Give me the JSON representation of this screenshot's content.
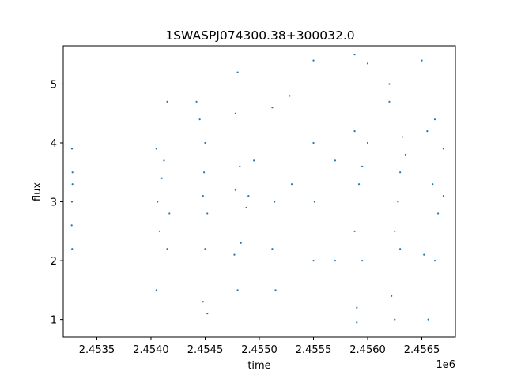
{
  "chart_data": {
    "type": "scatter",
    "title": "1SWASPJ074300.38+300032.0",
    "xlabel": "time",
    "ylabel": "flux",
    "x_offset_label": "1e6",
    "xlim": [
      2453190,
      2456810
    ],
    "ylim": [
      0.7,
      5.65
    ],
    "xticks": [
      2453500,
      2454000,
      2454500,
      2455000,
      2455500,
      2456000,
      2456500
    ],
    "xtick_labels": [
      "2.4535",
      "2.4540",
      "2.4545",
      "2.4550",
      "2.4555",
      "2.4560",
      "2.4565"
    ],
    "yticks": [
      1,
      2,
      3,
      4,
      5
    ],
    "ytick_labels": [
      "1",
      "2",
      "3",
      "4",
      "5"
    ],
    "grid": false,
    "marker_color": "#1f77b4",
    "series": [
      {
        "name": "",
        "x": [
          2453270,
          2453270,
          2453275,
          2453272,
          2453268,
          2453275,
          2454050,
          2454150,
          2454080,
          2454120,
          2454050,
          2454150,
          2454060,
          2454100,
          2454170,
          2454450,
          2454480,
          2454520,
          2454500,
          2454490,
          2454420,
          2454520,
          2454480,
          2454500,
          2454780,
          2454800,
          2454830,
          2454950,
          2454880,
          2454820,
          2454800,
          2454900,
          2454770,
          2454780,
          2455120,
          2455150,
          2455140,
          2455120,
          2455300,
          2455280,
          2455500,
          2455500,
          2455510,
          2455500,
          2455700,
          2455700,
          2455880,
          2455900,
          2455950,
          2456000,
          2455880,
          2455920,
          2456000,
          2455900,
          2455950,
          2455880,
          2456200,
          2456250,
          2456300,
          2456350,
          2456220,
          2456320,
          2456280,
          2456250,
          2456300,
          2456200,
          2456500,
          2456560,
          2456620,
          2456700,
          2456550,
          2456650,
          2456600,
          2456700,
          2456520,
          2456620
        ],
        "y": [
          3.0,
          3.9,
          3.5,
          2.2,
          2.6,
          3.3,
          3.9,
          2.2,
          2.5,
          3.7,
          1.5,
          4.7,
          3.0,
          3.4,
          2.8,
          4.4,
          1.3,
          1.1,
          2.2,
          3.5,
          4.7,
          2.8,
          3.1,
          4.0,
          4.5,
          5.2,
          2.3,
          3.7,
          2.9,
          3.6,
          1.5,
          3.1,
          2.1,
          3.2,
          4.6,
          1.5,
          3.0,
          2.2,
          3.3,
          4.8,
          5.4,
          2.0,
          3.0,
          4.0,
          3.7,
          2.0,
          5.5,
          0.95,
          2.0,
          4.0,
          2.5,
          3.3,
          5.35,
          1.2,
          3.6,
          4.2,
          5.0,
          1.0,
          2.2,
          3.8,
          1.4,
          4.1,
          3.0,
          2.5,
          3.5,
          4.7,
          5.4,
          1.0,
          2.0,
          3.9,
          4.2,
          2.8,
          3.3,
          3.1,
          2.1,
          4.4
        ]
      }
    ]
  }
}
